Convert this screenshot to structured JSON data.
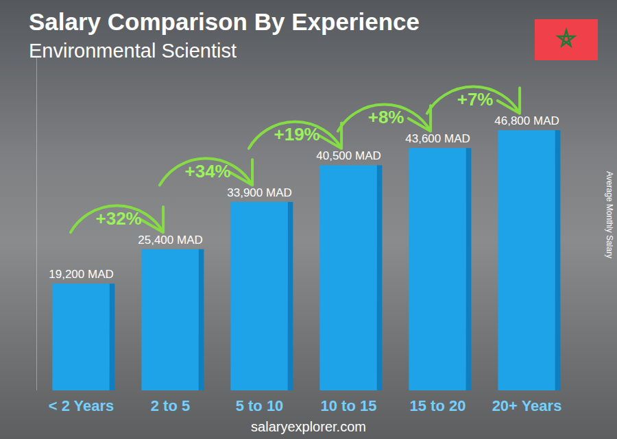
{
  "chart_data": {
    "type": "bar",
    "title": "Salary Comparison By Experience",
    "subtitle": "Environmental Scientist",
    "categories": [
      "< 2 Years",
      "2 to 5",
      "5 to 10",
      "10 to 15",
      "15 to 20",
      "20+ Years"
    ],
    "values": [
      19200,
      25400,
      33900,
      40500,
      43600,
      46800
    ],
    "value_labels": [
      "19,200 MAD",
      "25,400 MAD",
      "33,900 MAD",
      "40,500 MAD",
      "43,600 MAD",
      "46,800 MAD"
    ],
    "data_labels": true,
    "color": "#1ea3e8",
    "ylabel": "Average Monthly Salary",
    "annotations": [
      "+32%",
      "+34%",
      "+19%",
      "+8%",
      "+7%"
    ],
    "ylim": [
      0,
      60000
    ],
    "tick_labels": "x",
    "grid": false,
    "source": "salaryexplorer.com"
  }
}
